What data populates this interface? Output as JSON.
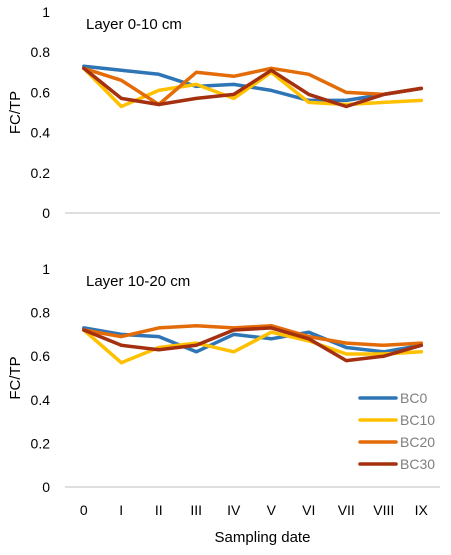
{
  "chart_data": {
    "type": "line",
    "categories": [
      "0",
      "I",
      "II",
      "III",
      "IV",
      "V",
      "VI",
      "VII",
      "VIII",
      "IX"
    ],
    "xlabel": "Sampling date",
    "ylabel": "FC/TP",
    "ylim": [
      0,
      1
    ],
    "yticks": [
      "0",
      "0.2",
      "0.4",
      "0.6",
      "0.8",
      "1"
    ],
    "grid": false,
    "legend_placement": "bottom-right of lower panel",
    "series_colors": {
      "BC0": "#2e75b6",
      "BC10": "#ffc000",
      "BC20": "#e36c09",
      "BC30": "#a5300f"
    },
    "panels": [
      {
        "title": "Layer 0-10 cm",
        "series": [
          {
            "name": "BC0",
            "values": [
              0.73,
              0.71,
              0.69,
              0.63,
              0.64,
              0.61,
              0.56,
              0.56,
              0.59,
              0.62
            ]
          },
          {
            "name": "BC10",
            "values": [
              0.72,
              0.53,
              0.61,
              0.64,
              0.57,
              0.7,
              0.55,
              0.54,
              0.55,
              0.56
            ]
          },
          {
            "name": "BC20",
            "values": [
              0.72,
              0.66,
              0.54,
              0.7,
              0.68,
              0.72,
              0.69,
              0.6,
              0.59,
              0.62
            ]
          },
          {
            "name": "BC30",
            "values": [
              0.72,
              0.57,
              0.54,
              0.57,
              0.59,
              0.71,
              0.59,
              0.53,
              0.59,
              0.62
            ]
          }
        ]
      },
      {
        "title": "Layer 10-20 cm",
        "series": [
          {
            "name": "BC0",
            "values": [
              0.73,
              0.7,
              0.69,
              0.62,
              0.7,
              0.68,
              0.71,
              0.64,
              0.62,
              0.65
            ]
          },
          {
            "name": "BC10",
            "values": [
              0.72,
              0.57,
              0.64,
              0.66,
              0.62,
              0.71,
              0.67,
              0.61,
              0.61,
              0.62
            ]
          },
          {
            "name": "BC20",
            "values": [
              0.72,
              0.69,
              0.73,
              0.74,
              0.73,
              0.74,
              0.69,
              0.66,
              0.65,
              0.66
            ]
          },
          {
            "name": "BC30",
            "values": [
              0.72,
              0.65,
              0.63,
              0.65,
              0.72,
              0.73,
              0.68,
              0.58,
              0.6,
              0.65
            ]
          }
        ]
      }
    ]
  }
}
